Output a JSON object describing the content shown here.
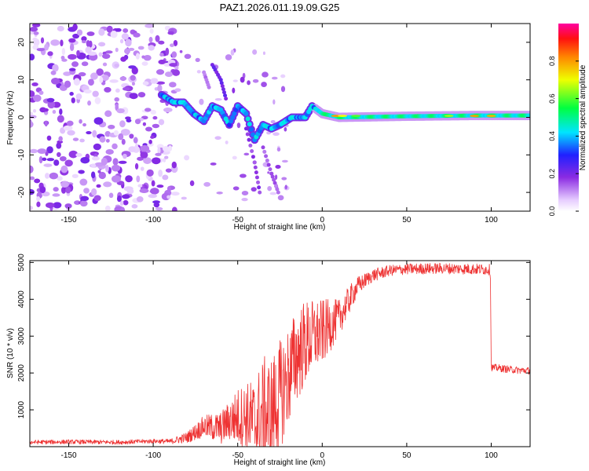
{
  "title": "PAZ1.2026.011.19.09.G25",
  "colors": {
    "snr_line": "#ee3333",
    "axes": "#000000",
    "background": "#ffffff"
  },
  "colorbar": {
    "label": "Normalized spectral amplitude",
    "ticks": [
      "0.0",
      "0.2",
      "0.4",
      "0.6",
      "0.8"
    ],
    "tick_values": [
      0.0,
      0.2,
      0.4,
      0.6,
      0.8
    ],
    "range": [
      0,
      1
    ],
    "colormap": "rainbow (white-violet-blue-cyan-green-yellow-red-magenta)"
  },
  "chart_data": [
    {
      "type": "heatmap",
      "title": "PAZ1.2026.011.19.09.G25",
      "xlabel": "Height of straight line (km)",
      "ylabel": "Frequency (Hz)",
      "xlim": [
        -173,
        123
      ],
      "ylim": [
        -25,
        25
      ],
      "xticks": [
        -150,
        -100,
        -50,
        0,
        50,
        100
      ],
      "xtick_labels": [
        "-150",
        "-100",
        "-50",
        "0",
        "50",
        "100"
      ],
      "yticks": [
        -20,
        -10,
        0,
        10,
        20
      ],
      "ytick_labels": [
        "-20",
        "-10",
        "0",
        "10",
        "20"
      ],
      "description_points": {
        "noise_region_x": [
          -173,
          -86
        ],
        "ridge": [
          {
            "x": -95,
            "f": 6
          },
          {
            "x": -88,
            "f": 4
          },
          {
            "x": -82,
            "f": 4
          },
          {
            "x": -76,
            "f": 1
          },
          {
            "x": -70,
            "f": -1
          },
          {
            "x": -65,
            "f": 3
          },
          {
            "x": -60,
            "f": 2
          },
          {
            "x": -55,
            "f": -2
          },
          {
            "x": -50,
            "f": 3
          },
          {
            "x": -45,
            "f": 1
          },
          {
            "x": -40,
            "f": -6
          },
          {
            "x": -35,
            "f": -2
          },
          {
            "x": -30,
            "f": -3
          },
          {
            "x": -25,
            "f": -2
          },
          {
            "x": -18,
            "f": 0
          },
          {
            "x": -10,
            "f": 0
          },
          {
            "x": -6,
            "f": 3
          },
          {
            "x": 0,
            "f": 1
          },
          {
            "x": 10,
            "f": 0
          },
          {
            "x": 50,
            "f": 0.3
          },
          {
            "x": 90,
            "f": 0.5
          },
          {
            "x": 123,
            "f": 0.5
          }
        ]
      }
    },
    {
      "type": "line",
      "xlabel": "Height of straight line (km)",
      "ylabel": "SNR (10 * v/v)",
      "xlim": [
        -173,
        123
      ],
      "ylim": [
        0,
        5050
      ],
      "xticks": [
        -150,
        -100,
        -50,
        0,
        50,
        100
      ],
      "xtick_labels": [
        "-150",
        "-100",
        "-50",
        "0",
        "50",
        "100"
      ],
      "yticks": [
        1000,
        2000,
        3000,
        4000,
        5000
      ],
      "ytick_labels": [
        "1000",
        "2000",
        "3000",
        "4000",
        "5000"
      ],
      "series": [
        {
          "name": "SNR",
          "x": [
            -173,
            -150,
            -120,
            -100,
            -90,
            -80,
            -70,
            -60,
            -55,
            -50,
            -45,
            -40,
            -35,
            -30,
            -25,
            -20,
            -15,
            -10,
            -5,
            0,
            5,
            10,
            15,
            20,
            25,
            30,
            40,
            50,
            60,
            70,
            80,
            90,
            98,
            99.5,
            100,
            105,
            110,
            115,
            123
          ],
          "y": [
            120,
            130,
            120,
            150,
            140,
            250,
            550,
            500,
            700,
            800,
            850,
            650,
            850,
            900,
            1400,
            1900,
            2500,
            2800,
            3000,
            3100,
            3300,
            3500,
            3900,
            4300,
            4500,
            4650,
            4780,
            4820,
            4830,
            4840,
            4830,
            4820,
            4810,
            4800,
            2150,
            2130,
            2100,
            2080,
            2060
          ],
          "noise_amplitude": [
            60,
            60,
            60,
            60,
            70,
            150,
            300,
            450,
            550,
            800,
            900,
            1200,
            1600,
            1600,
            1500,
            1400,
            1300,
            1200,
            1000,
            900,
            700,
            500,
            400,
            300,
            200,
            180,
            150,
            150,
            150,
            150,
            150,
            150,
            150,
            150,
            100,
            100,
            100,
            100,
            100
          ]
        }
      ]
    }
  ]
}
